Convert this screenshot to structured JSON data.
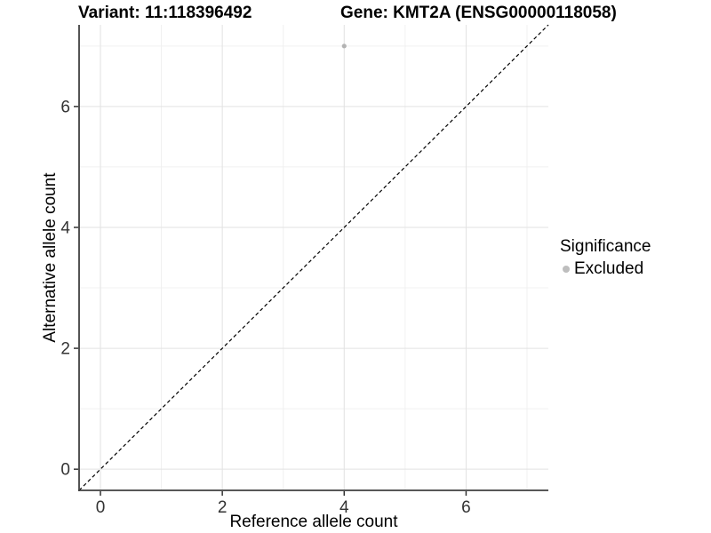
{
  "chart_data": {
    "type": "scatter",
    "titles": {
      "left": "Variant: 11:118396492",
      "right": "Gene: KMT2A (ENSG00000118058)"
    },
    "xlabel": "Reference allele count",
    "ylabel": "Alternative allele count",
    "xlim": [
      -0.35,
      7.35
    ],
    "ylim": [
      -0.35,
      7.35
    ],
    "x_major_ticks": [
      0,
      2,
      4,
      6
    ],
    "y_major_ticks": [
      0,
      2,
      4,
      6
    ],
    "x_minor_gridlines": [
      1,
      3,
      5,
      7
    ],
    "y_minor_gridlines": [
      1,
      3,
      5,
      7
    ],
    "grid": true,
    "series": [
      {
        "name": "Excluded",
        "color": "#b3b3b3",
        "points": [
          {
            "x": 4,
            "y": 7
          }
        ]
      }
    ],
    "identity_line": {
      "style": "dashed",
      "slope": 1,
      "intercept": 0,
      "color": "#000000"
    },
    "legend": {
      "position": "right",
      "title": "Significance",
      "entries": [
        {
          "label": "Excluded",
          "color": "#bebebe"
        }
      ]
    },
    "colors": {
      "grid_major": "#e2e2e2",
      "grid_minor": "#f0f0f0",
      "axis_line": "#404040",
      "tick_mark": "#333333",
      "tick_label": "#333333"
    }
  }
}
